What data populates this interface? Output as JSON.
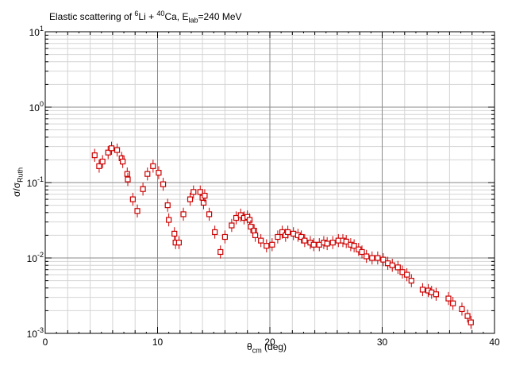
{
  "chart_data": {
    "type": "scatter",
    "title": {
      "prefix": "Elastic scattering of ",
      "proj_mass": "6",
      "proj": "Li + ",
      "targ_mass": "40",
      "targ": "Ca, E",
      "e_sub": "lab",
      "energy": "=240 MeV"
    },
    "xlabel": {
      "main": "θ",
      "sub": "cm",
      "suffix": " (deg)"
    },
    "ylabel": {
      "main": "σ/σ",
      "sub": "Ruth"
    },
    "xlim": [
      0,
      40
    ],
    "ylim": [
      0.001,
      10
    ],
    "yscale": "log",
    "grid": true,
    "x_ticks": [
      "0",
      "10",
      "20",
      "30",
      "40"
    ],
    "y_ticks": [
      {
        "base": "10",
        "exp": "-3"
      },
      {
        "base": "10",
        "exp": "-2"
      },
      {
        "base": "10",
        "exp": "-1"
      },
      {
        "base": "10",
        "exp": "0"
      },
      {
        "base": "10",
        "exp": "1"
      }
    ],
    "marker_color": "#cc0000",
    "points": [
      [
        4.4,
        0.23
      ],
      [
        4.8,
        0.165
      ],
      [
        5.1,
        0.19
      ],
      [
        5.6,
        0.25
      ],
      [
        5.9,
        0.285
      ],
      [
        6.4,
        0.27
      ],
      [
        6.8,
        0.21
      ],
      [
        6.9,
        0.19
      ],
      [
        7.3,
        0.13
      ],
      [
        7.35,
        0.11
      ],
      [
        7.8,
        0.06
      ],
      [
        8.2,
        0.042
      ],
      [
        8.7,
        0.082
      ],
      [
        9.1,
        0.13
      ],
      [
        9.6,
        0.165
      ],
      [
        10.1,
        0.135
      ],
      [
        10.5,
        0.095
      ],
      [
        10.9,
        0.05
      ],
      [
        11.0,
        0.032
      ],
      [
        11.5,
        0.021
      ],
      [
        11.6,
        0.016
      ],
      [
        11.9,
        0.016
      ],
      [
        12.3,
        0.038
      ],
      [
        12.9,
        0.06
      ],
      [
        13.2,
        0.075
      ],
      [
        13.8,
        0.075
      ],
      [
        14.0,
        0.063
      ],
      [
        14.1,
        0.054
      ],
      [
        14.2,
        0.067
      ],
      [
        14.6,
        0.038
      ],
      [
        15.1,
        0.022
      ],
      [
        15.6,
        0.012
      ],
      [
        16.0,
        0.019
      ],
      [
        16.6,
        0.027
      ],
      [
        17.0,
        0.034
      ],
      [
        17.4,
        0.037
      ],
      [
        17.7,
        0.034
      ],
      [
        18.0,
        0.035
      ],
      [
        18.2,
        0.032
      ],
      [
        18.3,
        0.026
      ],
      [
        18.6,
        0.023
      ],
      [
        18.7,
        0.02
      ],
      [
        19.2,
        0.017
      ],
      [
        19.7,
        0.0145
      ],
      [
        20.2,
        0.015
      ],
      [
        20.7,
        0.019
      ],
      [
        21.1,
        0.022
      ],
      [
        21.4,
        0.02
      ],
      [
        21.6,
        0.022
      ],
      [
        22.1,
        0.021
      ],
      [
        22.5,
        0.02
      ],
      [
        22.8,
        0.019
      ],
      [
        23.1,
        0.017
      ],
      [
        23.6,
        0.016
      ],
      [
        23.9,
        0.015
      ],
      [
        24.4,
        0.015
      ],
      [
        24.8,
        0.016
      ],
      [
        25.1,
        0.0155
      ],
      [
        25.6,
        0.016
      ],
      [
        26.1,
        0.017
      ],
      [
        26.5,
        0.017
      ],
      [
        26.8,
        0.0165
      ],
      [
        27.2,
        0.015
      ],
      [
        27.5,
        0.0145
      ],
      [
        27.9,
        0.013
      ],
      [
        28.2,
        0.012
      ],
      [
        28.6,
        0.0105
      ],
      [
        29.1,
        0.01
      ],
      [
        29.6,
        0.01
      ],
      [
        30.1,
        0.0095
      ],
      [
        30.5,
        0.0085
      ],
      [
        30.9,
        0.008
      ],
      [
        31.4,
        0.0075
      ],
      [
        31.8,
        0.0065
      ],
      [
        32.2,
        0.006
      ],
      [
        32.6,
        0.005
      ],
      [
        33.6,
        0.0038
      ],
      [
        34.1,
        0.0037
      ],
      [
        34.4,
        0.0035
      ],
      [
        34.8,
        0.0033
      ],
      [
        35.9,
        0.0029
      ],
      [
        36.3,
        0.0025
      ],
      [
        37.1,
        0.0021
      ],
      [
        37.6,
        0.0017
      ],
      [
        37.9,
        0.0014
      ]
    ]
  }
}
